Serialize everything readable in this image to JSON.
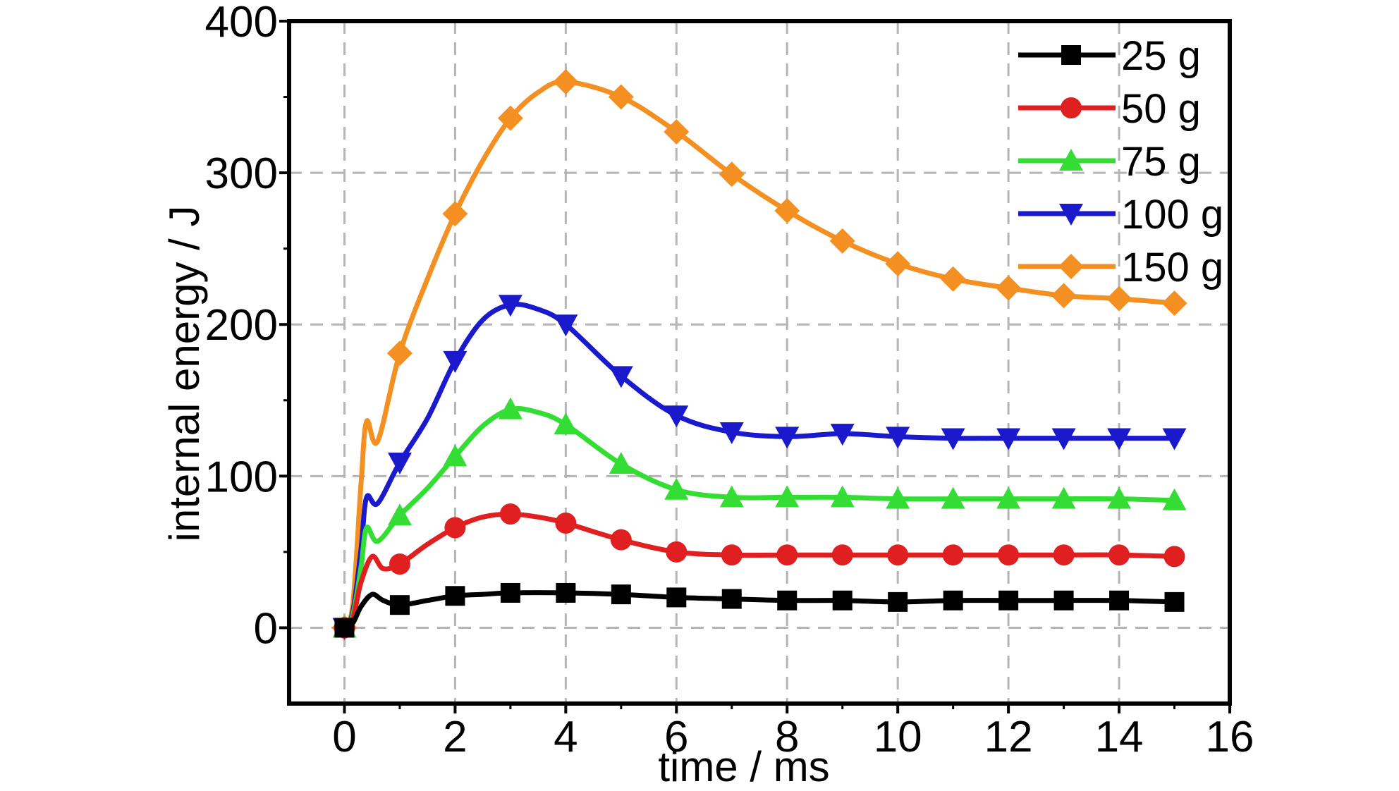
{
  "chart_data": {
    "type": "line",
    "title": "",
    "xlabel": "time / ms",
    "ylabel": "internal energy / J",
    "xlim": [
      -1,
      16
    ],
    "ylim": [
      -50,
      400
    ],
    "xticks": [
      0,
      2,
      4,
      6,
      8,
      10,
      12,
      14,
      16
    ],
    "yticks": [
      0,
      100,
      200,
      300,
      400
    ],
    "xtick_labels": [
      "0",
      "2",
      "4",
      "6",
      "8",
      "10",
      "12",
      "14",
      "16"
    ],
    "ytick_labels": [
      "0",
      "100",
      "200",
      "300",
      "400"
    ],
    "grid": true,
    "legend_position": "top-right",
    "series": [
      {
        "name": "25 g",
        "color": "#000000",
        "marker": "square",
        "line": [
          [
            0,
            0
          ],
          [
            0.15,
            3
          ],
          [
            0.3,
            14
          ],
          [
            0.5,
            22
          ],
          [
            0.7,
            18
          ],
          [
            1,
            15
          ],
          [
            1.5,
            18
          ],
          [
            2,
            21
          ],
          [
            2.5,
            22
          ],
          [
            3,
            23
          ],
          [
            4,
            23
          ],
          [
            5,
            22
          ],
          [
            6,
            20
          ],
          [
            7,
            19
          ],
          [
            8,
            18
          ],
          [
            9,
            18
          ],
          [
            10,
            17
          ],
          [
            11,
            18
          ],
          [
            12,
            18
          ],
          [
            13,
            18
          ],
          [
            14,
            18
          ],
          [
            15,
            17
          ]
        ],
        "markers": [
          [
            0,
            0
          ],
          [
            1,
            15
          ],
          [
            2,
            21
          ],
          [
            3,
            23
          ],
          [
            4,
            23
          ],
          [
            5,
            22
          ],
          [
            6,
            20
          ],
          [
            7,
            19
          ],
          [
            8,
            18
          ],
          [
            9,
            18
          ],
          [
            10,
            17
          ],
          [
            11,
            18
          ],
          [
            12,
            18
          ],
          [
            13,
            18
          ],
          [
            14,
            18
          ],
          [
            15,
            17
          ]
        ]
      },
      {
        "name": "50 g",
        "color": "#e02020",
        "marker": "circle",
        "line": [
          [
            0,
            0
          ],
          [
            0.15,
            6
          ],
          [
            0.3,
            30
          ],
          [
            0.5,
            47
          ],
          [
            0.7,
            39
          ],
          [
            1,
            42
          ],
          [
            1.5,
            55
          ],
          [
            2,
            66
          ],
          [
            2.5,
            73
          ],
          [
            3,
            75
          ],
          [
            3.5,
            73
          ],
          [
            4,
            69
          ],
          [
            5,
            58
          ],
          [
            6,
            50
          ],
          [
            7,
            48
          ],
          [
            8,
            48
          ],
          [
            9,
            48
          ],
          [
            10,
            48
          ],
          [
            11,
            48
          ],
          [
            12,
            48
          ],
          [
            13,
            48
          ],
          [
            14,
            48
          ],
          [
            15,
            47
          ]
        ],
        "markers": [
          [
            0,
            0
          ],
          [
            1,
            42
          ],
          [
            2,
            66
          ],
          [
            3,
            75
          ],
          [
            4,
            69
          ],
          [
            5,
            58
          ],
          [
            6,
            50
          ],
          [
            7,
            48
          ],
          [
            8,
            48
          ],
          [
            9,
            48
          ],
          [
            10,
            48
          ],
          [
            11,
            48
          ],
          [
            12,
            48
          ],
          [
            13,
            48
          ],
          [
            14,
            48
          ],
          [
            15,
            47
          ]
        ]
      },
      {
        "name": "75 g",
        "color": "#33dd33",
        "marker": "triangle-up",
        "line": [
          [
            0,
            0
          ],
          [
            0.15,
            8
          ],
          [
            0.3,
            40
          ],
          [
            0.4,
            66
          ],
          [
            0.6,
            57
          ],
          [
            1,
            74
          ],
          [
            1.5,
            92
          ],
          [
            2,
            113
          ],
          [
            2.5,
            133
          ],
          [
            3,
            144
          ],
          [
            3.5,
            142
          ],
          [
            4,
            134
          ],
          [
            5,
            108
          ],
          [
            6,
            91
          ],
          [
            7,
            86
          ],
          [
            8,
            86
          ],
          [
            9,
            86
          ],
          [
            10,
            85
          ],
          [
            11,
            85
          ],
          [
            12,
            85
          ],
          [
            13,
            85
          ],
          [
            14,
            85
          ],
          [
            15,
            84
          ]
        ],
        "markers": [
          [
            0,
            0
          ],
          [
            1,
            74
          ],
          [
            2,
            113
          ],
          [
            3,
            144
          ],
          [
            4,
            134
          ],
          [
            5,
            108
          ],
          [
            6,
            91
          ],
          [
            7,
            86
          ],
          [
            8,
            86
          ],
          [
            9,
            86
          ],
          [
            10,
            85
          ],
          [
            11,
            85
          ],
          [
            12,
            85
          ],
          [
            13,
            85
          ],
          [
            14,
            85
          ],
          [
            15,
            84
          ]
        ]
      },
      {
        "name": "100 g",
        "color": "#1a1acc",
        "marker": "triangle-down",
        "line": [
          [
            0,
            0
          ],
          [
            0.15,
            10
          ],
          [
            0.3,
            52
          ],
          [
            0.4,
            86
          ],
          [
            0.6,
            82
          ],
          [
            1,
            109
          ],
          [
            1.5,
            138
          ],
          [
            2,
            176
          ],
          [
            2.5,
            203
          ],
          [
            3,
            213
          ],
          [
            3.5,
            210
          ],
          [
            4,
            200
          ],
          [
            5,
            166
          ],
          [
            6,
            140
          ],
          [
            7,
            129
          ],
          [
            8,
            126
          ],
          [
            9,
            128
          ],
          [
            10,
            126
          ],
          [
            11,
            125
          ],
          [
            12,
            125
          ],
          [
            13,
            125
          ],
          [
            14,
            125
          ],
          [
            15,
            125
          ]
        ],
        "markers": [
          [
            0,
            0
          ],
          [
            1,
            109
          ],
          [
            2,
            176
          ],
          [
            3,
            213
          ],
          [
            4,
            200
          ],
          [
            5,
            166
          ],
          [
            6,
            140
          ],
          [
            7,
            129
          ],
          [
            8,
            126
          ],
          [
            9,
            128
          ],
          [
            10,
            126
          ],
          [
            11,
            125
          ],
          [
            12,
            125
          ],
          [
            13,
            125
          ],
          [
            14,
            125
          ],
          [
            15,
            125
          ]
        ]
      },
      {
        "name": "150 g",
        "color": "#f39021",
        "marker": "diamond",
        "line": [
          [
            0,
            0
          ],
          [
            0.15,
            15
          ],
          [
            0.3,
            95
          ],
          [
            0.4,
            136
          ],
          [
            0.6,
            123
          ],
          [
            1,
            181
          ],
          [
            1.5,
            230
          ],
          [
            2,
            273
          ],
          [
            2.5,
            308
          ],
          [
            3,
            336
          ],
          [
            3.5,
            353
          ],
          [
            4,
            360
          ],
          [
            5,
            350
          ],
          [
            6,
            327
          ],
          [
            7,
            299
          ],
          [
            8,
            275
          ],
          [
            9,
            255
          ],
          [
            10,
            240
          ],
          [
            11,
            230
          ],
          [
            12,
            224
          ],
          [
            13,
            219
          ],
          [
            14,
            217
          ],
          [
            15,
            214
          ]
        ],
        "markers": [
          [
            0,
            0
          ],
          [
            1,
            181
          ],
          [
            2,
            273
          ],
          [
            3,
            336
          ],
          [
            4,
            360
          ],
          [
            5,
            350
          ],
          [
            6,
            327
          ],
          [
            7,
            299
          ],
          [
            8,
            275
          ],
          [
            9,
            255
          ],
          [
            10,
            240
          ],
          [
            11,
            230
          ],
          [
            12,
            224
          ],
          [
            13,
            219
          ],
          [
            14,
            217
          ],
          [
            15,
            214
          ]
        ]
      }
    ]
  }
}
